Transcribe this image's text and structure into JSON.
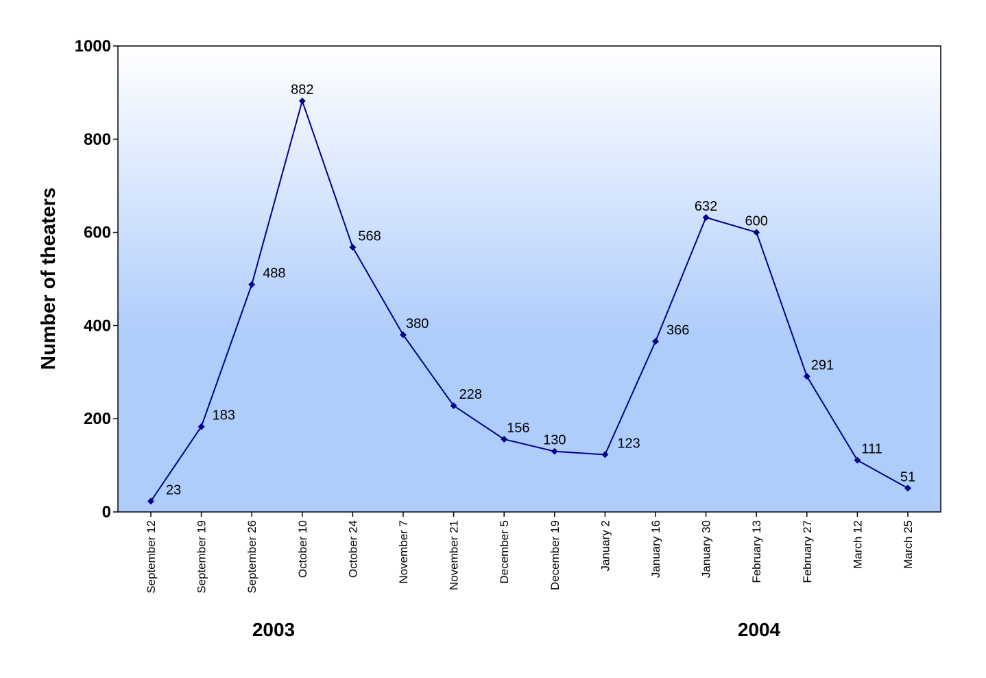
{
  "chart_data": {
    "type": "line",
    "title": "",
    "xlabel": "",
    "ylabel": "Number of theaters",
    "ylim": [
      0,
      1000
    ],
    "yticks": [
      "0",
      "200",
      "400",
      "600",
      "800",
      "1000"
    ],
    "categories": [
      "September 12",
      "September 19",
      "September 26",
      "October 10",
      "October 24",
      "November 7",
      "November 21",
      "December 5",
      "December 19",
      "January 2",
      "January 16",
      "January 30",
      "February 13",
      "February 27",
      "March 12",
      "March 25"
    ],
    "series": [
      {
        "values": [
          23,
          183,
          488,
          882,
          568,
          380,
          228,
          156,
          130,
          123,
          366,
          632,
          600,
          291,
          111,
          51
        ]
      }
    ],
    "year_labels": [
      "2003",
      "2004"
    ],
    "grid": false,
    "legend": "none",
    "colors": {
      "line": "#00008B",
      "bg_top": "#FFFFFF",
      "bg_bottom": "#AFCDFB"
    }
  }
}
